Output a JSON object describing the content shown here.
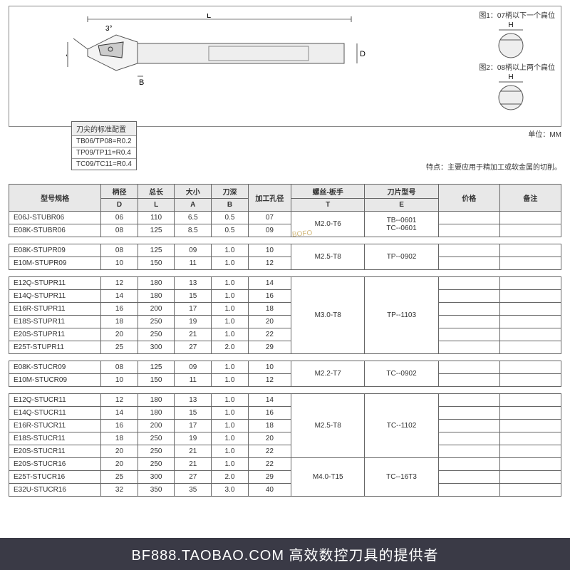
{
  "diagram": {
    "angle_label": "3°",
    "dim_L": "L",
    "dim_A": "A",
    "dim_B": "B",
    "dim_D": "D",
    "fig1_label": "图1：07柄以下一个扁位",
    "fig1_H": "H",
    "fig2_label": "图2：08柄以上两个扁位",
    "fig2_H": "H",
    "unit": "单位：MM",
    "features": "特点：主要应用于精加工或软金属的切削。"
  },
  "config": {
    "title": "刀尖的标准配置",
    "row1": "TB06/TP08=R0.2",
    "row2": "TP09/TP11=R0.4",
    "row3": "TC09/TC11=R0.4"
  },
  "headers": {
    "model": "型号规格",
    "D_top": "柄径",
    "D": "D",
    "L_top": "总长",
    "L": "L",
    "A_top": "大小",
    "A": "A",
    "B_top": "刀深",
    "B": "B",
    "bore": "加工孔径",
    "screw_top": "螺丝-板手",
    "T": "T",
    "insert_top": "刀片型号",
    "E": "E",
    "price": "价格",
    "notes": "备注"
  },
  "groups": [
    {
      "screw": "M2.0-T6",
      "insert_lines": [
        "TB--0601",
        "TC--0601"
      ],
      "rows": [
        {
          "m": "E06J-STUBR06",
          "D": "06",
          "L": "110",
          "A": "6.5",
          "B": "0.5",
          "bore": "07"
        },
        {
          "m": "E08K-STUBR06",
          "D": "08",
          "L": "125",
          "A": "8.5",
          "B": "0.5",
          "bore": "09"
        }
      ]
    },
    {
      "screw": "M2.5-T8",
      "insert_lines": [
        "TP--0902"
      ],
      "rows": [
        {
          "m": "E08K-STUPR09",
          "D": "08",
          "L": "125",
          "A": "09",
          "B": "1.0",
          "bore": "10"
        },
        {
          "m": "E10M-STUPR09",
          "D": "10",
          "L": "150",
          "A": "11",
          "B": "1.0",
          "bore": "12"
        }
      ]
    },
    {
      "screw": "M3.0-T8",
      "insert_lines": [
        "TP--1103"
      ],
      "rows": [
        {
          "m": "E12Q-STUPR11",
          "D": "12",
          "L": "180",
          "A": "13",
          "B": "1.0",
          "bore": "14"
        },
        {
          "m": "E14Q-STUPR11",
          "D": "14",
          "L": "180",
          "A": "15",
          "B": "1.0",
          "bore": "16"
        },
        {
          "m": "E16R-STUPR11",
          "D": "16",
          "L": "200",
          "A": "17",
          "B": "1.0",
          "bore": "18"
        },
        {
          "m": "E18S-STUPR11",
          "D": "18",
          "L": "250",
          "A": "19",
          "B": "1.0",
          "bore": "20"
        },
        {
          "m": "E20S-STUPR11",
          "D": "20",
          "L": "250",
          "A": "21",
          "B": "1.0",
          "bore": "22"
        },
        {
          "m": "E25T-STUPR11",
          "D": "25",
          "L": "300",
          "A": "27",
          "B": "2.0",
          "bore": "29"
        }
      ]
    },
    {
      "screw": "M2.2-T7",
      "insert_lines": [
        "TC--0902"
      ],
      "rows": [
        {
          "m": "E08K-STUCR09",
          "D": "08",
          "L": "125",
          "A": "09",
          "B": "1.0",
          "bore": "10"
        },
        {
          "m": "E10M-STUCR09",
          "D": "10",
          "L": "150",
          "A": "11",
          "B": "1.0",
          "bore": "12"
        }
      ]
    },
    {
      "screw": "M2.5-T8",
      "insert_lines": [
        "TC--1102"
      ],
      "rows": [
        {
          "m": "E12Q-STUCR11",
          "D": "12",
          "L": "180",
          "A": "13",
          "B": "1.0",
          "bore": "14"
        },
        {
          "m": "E14Q-STUCR11",
          "D": "14",
          "L": "180",
          "A": "15",
          "B": "1.0",
          "bore": "16"
        },
        {
          "m": "E16R-STUCR11",
          "D": "16",
          "L": "200",
          "A": "17",
          "B": "1.0",
          "bore": "18"
        },
        {
          "m": "E18S-STUCR11",
          "D": "18",
          "L": "250",
          "A": "19",
          "B": "1.0",
          "bore": "20"
        },
        {
          "m": "E20S-STUCR11",
          "D": "20",
          "L": "250",
          "A": "21",
          "B": "1.0",
          "bore": "22"
        }
      ]
    },
    {
      "screw": "M4.0-T15",
      "insert_lines": [
        "TC--16T3"
      ],
      "rows": [
        {
          "m": "E20S-STUCR16",
          "D": "20",
          "L": "250",
          "A": "21",
          "B": "1.0",
          "bore": "22"
        },
        {
          "m": "E25T-STUCR16",
          "D": "25",
          "L": "300",
          "A": "27",
          "B": "2.0",
          "bore": "29"
        },
        {
          "m": "E32U-STUCR16",
          "D": "32",
          "L": "350",
          "A": "35",
          "B": "3.0",
          "bore": "40"
        }
      ]
    }
  ],
  "footer": "BF888.TAOBAO.COM 高效数控刀具的提供者",
  "watermark": "BOFO"
}
